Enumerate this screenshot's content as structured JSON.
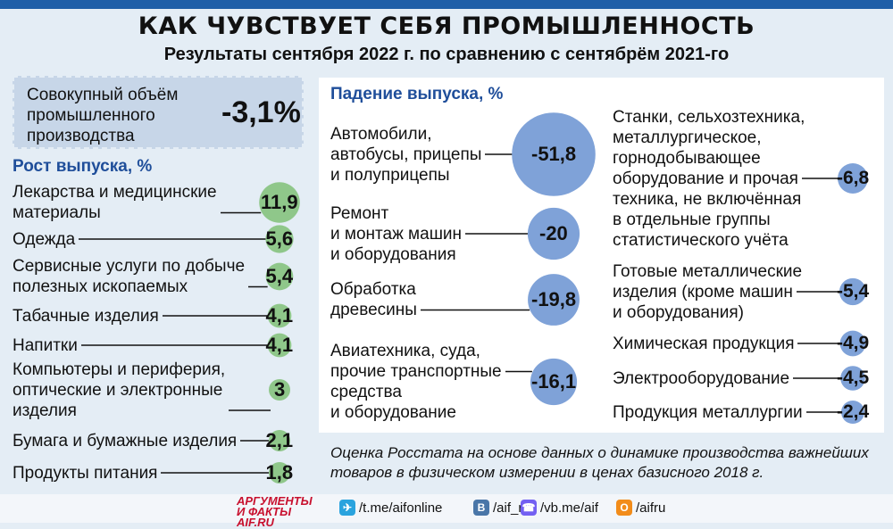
{
  "header": {
    "title": "КАК ЧУВСТВУЕТ СЕБЯ ПРОМЫШЛЕННОСТЬ",
    "subtitle": "Результаты сентября 2022 г. по сравнению с сентябрём 2021-го"
  },
  "total": {
    "label_lines": [
      "Совокупный объём",
      "промышленного",
      "производства"
    ],
    "value": "-3,1%"
  },
  "note": "Оценка Росстата на основе данных о динамике производства важнейших товаров в физическом измерении в ценах базисного 2018 г.",
  "footer": {
    "logo_lines": [
      "АРГУМЕНТЫ",
      "И ФАКТЫ AIF.RU"
    ],
    "socials": [
      {
        "icon": "telegram-icon",
        "text": "/t.me/aifonline",
        "color": "#2aa3de"
      },
      {
        "icon": "vk-icon",
        "text": "/aif_ru",
        "color": "#4a76a8"
      },
      {
        "icon": "viber-icon",
        "text": "/vb.me/aif",
        "color": "#7360f2"
      },
      {
        "icon": "odnoklassniki-icon",
        "text": "/aifru",
        "color": "#f28c1a"
      }
    ]
  },
  "colors": {
    "growth": "#8fc78a",
    "decline": "#7fa2d8",
    "accent": "#1f4e9a"
  },
  "chart_data": [
    {
      "type": "bubble",
      "title": "Рост выпуска, %",
      "categories": [
        [
          "Лекарства и медицинские",
          "материалы"
        ],
        [
          "Одежда"
        ],
        [
          "Сервисные услуги по добыче",
          "полезных ископаемых"
        ],
        [
          "Табачные изделия"
        ],
        [
          "Напитки"
        ],
        [
          "Компьютеры и периферия,",
          "оптические и электронные",
          "изделия"
        ],
        [
          "Бумага и бумажные изделия"
        ],
        [
          "Продукты питания"
        ]
      ],
      "values": [
        11.9,
        5.6,
        5.4,
        4.1,
        4.1,
        3,
        2.1,
        1.8
      ],
      "labels": [
        "11,9",
        "5,6",
        "5,4",
        "4,1",
        "4,1",
        "3",
        "2,1",
        "1,8"
      ]
    },
    {
      "type": "bubble",
      "title": "Падение выпуска, %",
      "categories": [
        [
          "Автомобили,",
          "автобусы, прицепы",
          "и полуприцепы"
        ],
        [
          "Ремонт",
          "и монтаж машин",
          "и оборудования"
        ],
        [
          "Обработка",
          "древесины"
        ],
        [
          "Авиатехника, суда,",
          "прочие транспортные",
          "средства",
          "и оборудование"
        ],
        [
          "Станки, сельхозтехника,",
          "металлургическое,",
          "горнодобывающее",
          "оборудование и прочая",
          "техника, не включённая",
          "в отдельные группы",
          "статистического учёта"
        ],
        [
          "Готовые металлические",
          "изделия (кроме машин",
          "и оборудования)"
        ],
        [
          "Химическая продукция"
        ],
        [
          "Электрооборудование"
        ],
        [
          "Продукция металлургии"
        ]
      ],
      "values": [
        -51.8,
        -20,
        -19.8,
        -16.1,
        -6.8,
        -5.4,
        -4.9,
        -4.5,
        -2.4
      ],
      "labels": [
        "-51,8",
        "-20",
        "-19,8",
        "-16,1",
        "-6,8",
        "-5,4",
        "-4,9",
        "-4,5",
        "-2,4"
      ]
    }
  ]
}
